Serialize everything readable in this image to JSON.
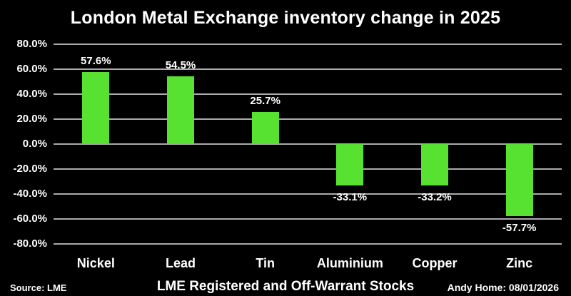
{
  "title": "London Metal Exchange inventory change in 2025",
  "chart_data": {
    "type": "bar",
    "title": "London Metal Exchange inventory change in 2025",
    "categories": [
      "Nickel",
      "Lead",
      "Tin",
      "Aluminium",
      "Copper",
      "Zinc"
    ],
    "values": [
      57.6,
      54.5,
      25.7,
      -33.1,
      -33.2,
      -57.7
    ],
    "value_labels": [
      "57.6%",
      "54.5%",
      "25.7%",
      "-33.1%",
      "-33.2%",
      "-57.7%"
    ],
    "xlabel": "",
    "ylabel": "",
    "ylim": [
      -80,
      80
    ],
    "y_ticks": [
      80,
      60,
      40,
      20,
      0,
      -20,
      -40,
      -60,
      -80
    ],
    "y_tick_labels": [
      "80.0%",
      "60.0%",
      "40.0%",
      "20.0%",
      "0.0%",
      "-20.0%",
      "-40.0%",
      "-60.0%",
      "-80.0%"
    ],
    "grid": true,
    "legend": false
  },
  "colors": {
    "background": "#000000",
    "text": "#ffffff",
    "bar": "#57e231",
    "gridline": "#ababab"
  },
  "footer": {
    "source": "Source: LME",
    "subtitle": "LME Registered and Off-Warrant Stocks",
    "credit": "Andy Home: 08/01/2026"
  }
}
